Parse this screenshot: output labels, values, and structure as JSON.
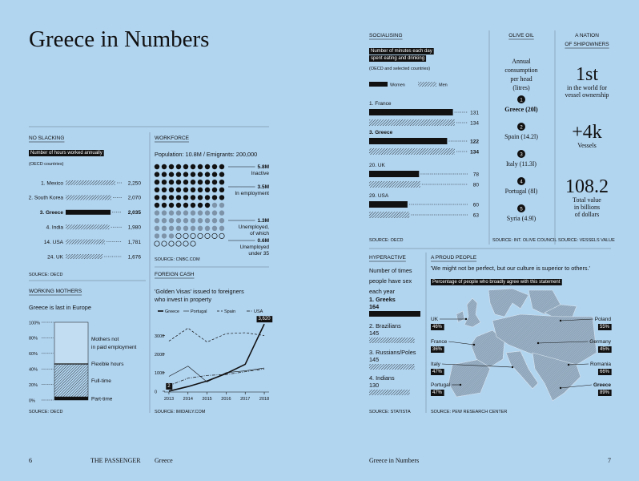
{
  "left_page": {
    "title": "Greece in Numbers",
    "page_number": "6",
    "magazine": "THE PASSENGER",
    "section": "Greece"
  },
  "no_slacking": {
    "type": "bar",
    "heading": "NO SLACKING",
    "label": "Number of hours worked annually",
    "note": "(OECD countries)",
    "categories": [
      "1. Mexico",
      "2. South Korea",
      "3. Greece",
      "4. India",
      "14. USA",
      "24. UK"
    ],
    "values": [
      2250,
      2070,
      2035,
      1980,
      1781,
      1676
    ],
    "value_labels": [
      "2,250",
      "2,070",
      "2,035",
      "1,980",
      "1,781",
      "1,676"
    ],
    "highlight": 2,
    "source": "SOURCE: OECD"
  },
  "workforce": {
    "type": "dot-matrix",
    "heading": "WORKFORCE",
    "subtitle": "Population: 10.8M / Emigrants: 200,000",
    "groups": [
      {
        "value": 5.8,
        "value_label": "5.8M",
        "label_lines": [
          "Inactive"
        ],
        "style": "filled"
      },
      {
        "value": 3.5,
        "value_label": "3.5M",
        "label_lines": [
          "In employment"
        ],
        "style": "grey"
      },
      {
        "value": 1.3,
        "value_label": "1.3M",
        "label_lines": [
          "Unemployed,",
          "of which"
        ],
        "style": "outline"
      },
      {
        "value": 0.6,
        "value_label": "0.6M",
        "label_lines": [
          "Unemployed",
          "under 35"
        ],
        "style": "outline-subset"
      }
    ],
    "source": "SOURCE: CNBC.COM"
  },
  "working_mothers": {
    "type": "stacked-bar",
    "heading": "WORKING MOTHERS",
    "subtitle": "Greece is last in Europe",
    "ylim": [
      0,
      100
    ],
    "yticks": [
      {
        "value": 0,
        "label": "0%"
      },
      {
        "value": 20,
        "label": "20%"
      },
      {
        "value": 40,
        "label": "40%"
      },
      {
        "value": 60,
        "label": "60%"
      },
      {
        "value": 80,
        "label": "80%"
      },
      {
        "value": 100,
        "label": "100%"
      }
    ],
    "segments": [
      {
        "name_lines": [
          "Part-time"
        ],
        "value": 4,
        "fill": "solid"
      },
      {
        "name_lines": [
          "Full-time"
        ],
        "value": 42,
        "fill": "hatch"
      },
      {
        "name_lines": [
          "Flexible hours"
        ],
        "value": 1,
        "fill": "plain"
      },
      {
        "name_lines": [
          "Mothers not",
          "in paid employment"
        ],
        "value": 53,
        "fill": "outline"
      }
    ],
    "source": "SOURCE: OECD"
  },
  "foreign_cash": {
    "type": "line",
    "heading": "FOREIGN CASH",
    "subtitle_lines": [
      "'Golden Visas' issued to foreigners",
      "who invest in property"
    ],
    "x": [
      2013,
      2014,
      2015,
      2016,
      2017,
      2018
    ],
    "xlim": [
      2012.75,
      2018.25
    ],
    "ylim": [
      0,
      3800
    ],
    "yticks": [
      0,
      1000,
      2000,
      3000
    ],
    "series": [
      {
        "name": "Greece",
        "style": "bold",
        "values": [
          2,
          250,
          550,
          950,
          1450,
          3620
        ],
        "value_labels": [
          "2",
          null,
          null,
          null,
          null,
          "3,620"
        ]
      },
      {
        "name": "Portugal",
        "style": "thin",
        "values": [
          800,
          1350,
          500,
          1000,
          1100,
          1250
        ]
      },
      {
        "name": "Spain",
        "style": "dashed",
        "values": [
          2700,
          3400,
          2650,
          3100,
          3150,
          3000
        ]
      },
      {
        "name": "USA",
        "style": "dashdot",
        "values": [
          300,
          700,
          850,
          900,
          1050,
          1200
        ]
      }
    ],
    "source": "SOURCE: IMIDAILY.COM"
  },
  "right_page": {
    "section": "Greece in Numbers",
    "page_number": "7"
  },
  "socialising": {
    "type": "bar",
    "heading": "SOCIALISING",
    "label_lines": [
      "Number of minutes each day",
      "spent eating and drinking"
    ],
    "note": "(OECD and selected countries)",
    "categories": [
      "1. France",
      "3. Greece",
      "20. UK",
      "29. USA"
    ],
    "highlight": 1,
    "series": [
      {
        "name": "Women",
        "pattern": "solid",
        "values": [
          131,
          122,
          78,
          60
        ]
      },
      {
        "name": "Men",
        "pattern": "hatch",
        "values": [
          134,
          134,
          80,
          63
        ]
      }
    ],
    "source": "SOURCE: OECD"
  },
  "olive_oil": {
    "heading": "OLIVE OIL",
    "subtitle_lines": [
      "Annual",
      "consumption",
      "per head",
      "(litres)"
    ],
    "items": [
      {
        "rank": "1",
        "text": "Greece (20l)"
      },
      {
        "rank": "2",
        "text": "Spain (14.2l)"
      },
      {
        "rank": "3",
        "text": "Italy (11.3l)"
      },
      {
        "rank": "4",
        "text": "Portugal (8l)"
      },
      {
        "rank": "5",
        "text": "Syria (4.9l)"
      }
    ],
    "source": "SOURCE: INT. OLIVE COUNCIL"
  },
  "shipowners": {
    "heading_lines": [
      "A NATION",
      "OF SHIPOWNERS"
    ],
    "facts": [
      {
        "figure": "1st",
        "text_lines": [
          "in the world for",
          "vessel ownership"
        ]
      },
      {
        "figure": "+4k",
        "text_lines": [
          "Vessels"
        ]
      },
      {
        "figure": "108.2",
        "text_lines": [
          "Total value",
          "in billions",
          "of dollars"
        ]
      }
    ],
    "source": "SOURCE: VESSELS VALUE"
  },
  "hyperactive": {
    "type": "bar",
    "heading": "HYPERACTIVE",
    "subtitle_lines": [
      "Number of times",
      "people have sex",
      "each year"
    ],
    "categories": [
      "1. Greeks",
      "2. Brazilians",
      "3. Russians/Poles",
      "4. Indians"
    ],
    "values": [
      164,
      145,
      145,
      130
    ],
    "highlight": 0,
    "source": "SOURCE: STATISTA"
  },
  "proud_people": {
    "heading": "A PROUD PEOPLE",
    "quote": "'We might not be perfect, but our culture is superior to others.'",
    "label": "Percentage of people who broadly agree with this statement",
    "countries": [
      {
        "name": "UK",
        "value": "46%"
      },
      {
        "name": "France",
        "value": "36%"
      },
      {
        "name": "Italy",
        "value": "47%"
      },
      {
        "name": "Portugal",
        "value": "47%"
      },
      {
        "name": "Poland",
        "value": "55%"
      },
      {
        "name": "Germany",
        "value": "45%"
      },
      {
        "name": "Romania",
        "value": "66%"
      },
      {
        "name": "Greece",
        "value": "89%"
      }
    ],
    "highlight": 7,
    "source": "SOURCE: PEW RESEARCH CENTER"
  }
}
